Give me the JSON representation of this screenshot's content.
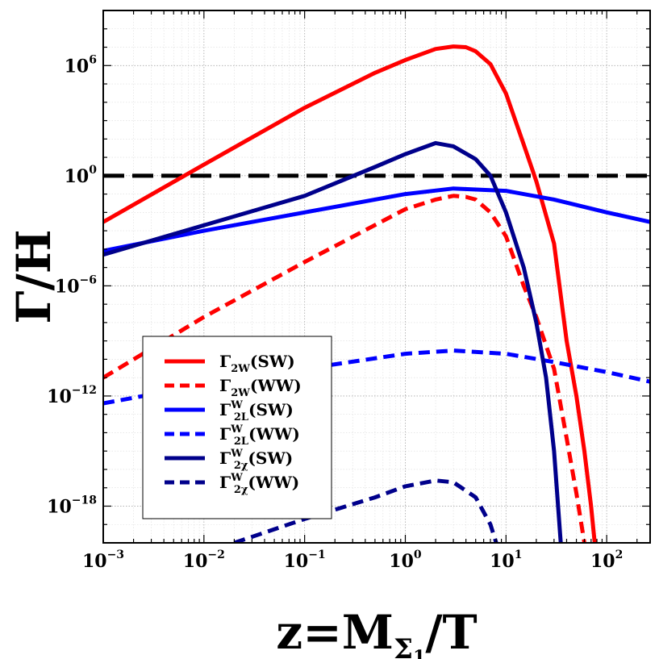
{
  "chart_data": {
    "type": "line",
    "xlabel": "z=M",
    "xlabel_sub": "Σ",
    "xlabel_subsub": "1",
    "xlabel_tail": "/T",
    "ylabel": "Γ/H",
    "x_scale": "log",
    "y_scale": "log",
    "xlim": [
      0.001,
      270
    ],
    "ylim": [
      1e-20,
      1000000000.0
    ],
    "grid": true,
    "legend_position": "lower-left",
    "x_ticks": [
      {
        "base": "10",
        "exp": "−3",
        "value": 0.001
      },
      {
        "base": "10",
        "exp": "−2",
        "value": 0.01
      },
      {
        "base": "10",
        "exp": "−1",
        "value": 0.1
      },
      {
        "base": "10",
        "exp": "0",
        "value": 1
      },
      {
        "base": "10",
        "exp": "1",
        "value": 10
      },
      {
        "base": "10",
        "exp": "2",
        "value": 100
      }
    ],
    "y_ticks": [
      {
        "base": "10",
        "exp": "−18",
        "value": 1e-18
      },
      {
        "base": "10",
        "exp": "−12",
        "value": 1e-12
      },
      {
        "base": "10",
        "exp": "−6",
        "value": 1e-06
      },
      {
        "base": "10",
        "exp": "0",
        "value": 1
      },
      {
        "base": "10",
        "exp": "6",
        "value": 1000000.0
      }
    ],
    "reference_line": {
      "y": 1,
      "color": "#000000",
      "style": "dashed"
    },
    "series": [
      {
        "name": "Γ2W(SW)",
        "label_main": "Γ",
        "label_sub": "2W",
        "label_sup": "",
        "label_tail": "(SW)",
        "color": "#ff0000",
        "dash": "solid",
        "points": [
          [
            0.001,
            0.003
          ],
          [
            0.01,
            4
          ],
          [
            0.1,
            5000
          ],
          [
            0.5,
            400000
          ],
          [
            1,
            2000000
          ],
          [
            2,
            8000000
          ],
          [
            3,
            11000000
          ],
          [
            4,
            10000000
          ],
          [
            5,
            6000000
          ],
          [
            7,
            1200000
          ],
          [
            10,
            30000
          ],
          [
            15,
            50
          ],
          [
            20,
            0.5
          ],
          [
            30,
            0.0002
          ],
          [
            40,
            1e-09
          ],
          [
            50,
            1e-12
          ],
          [
            60,
            1e-15
          ],
          [
            70,
            1e-18
          ],
          [
            76,
            1e-20
          ]
        ]
      },
      {
        "name": "Γ2W(WW)",
        "label_main": "Γ",
        "label_sub": "2W",
        "label_sup": "",
        "label_tail": "(WW)",
        "color": "#ff0000",
        "dash": "dashed",
        "points": [
          [
            0.001,
            1e-11
          ],
          [
            0.01,
            2e-08
          ],
          [
            0.1,
            2e-05
          ],
          [
            1,
            0.015
          ],
          [
            2,
            0.05
          ],
          [
            3,
            0.08
          ],
          [
            4,
            0.07
          ],
          [
            5,
            0.05
          ],
          [
            7,
            0.01
          ],
          [
            10,
            0.0005
          ],
          [
            15,
            1e-06
          ],
          [
            20,
            2e-08
          ],
          [
            30,
            3e-11
          ],
          [
            40,
            5e-15
          ],
          [
            50,
            5e-18
          ],
          [
            60,
            1e-20
          ]
        ]
      },
      {
        "name": "Γ2L^W(SW)",
        "label_main": "Γ",
        "label_sub": "2L",
        "label_sup": "W",
        "label_tail": "(SW)",
        "color": "#0000ff",
        "dash": "solid",
        "points": [
          [
            0.001,
            8e-05
          ],
          [
            0.01,
            0.001
          ],
          [
            0.1,
            0.01
          ],
          [
            1,
            0.1
          ],
          [
            3,
            0.2
          ],
          [
            10,
            0.15
          ],
          [
            30,
            0.05
          ],
          [
            100,
            0.01
          ],
          [
            270,
            0.003
          ]
        ]
      },
      {
        "name": "Γ2L^W(WW)",
        "label_main": "Γ",
        "label_sub": "2L",
        "label_sup": "W",
        "label_tail": "(WW)",
        "color": "#0000ff",
        "dash": "dashed",
        "points": [
          [
            0.001,
            4e-13
          ],
          [
            0.01,
            4e-12
          ],
          [
            0.1,
            3e-11
          ],
          [
            1,
            2e-10
          ],
          [
            3,
            3e-10
          ],
          [
            10,
            2e-10
          ],
          [
            30,
            7e-11
          ],
          [
            100,
            2e-11
          ],
          [
            270,
            6e-12
          ]
        ]
      },
      {
        "name": "Γ2χ^W(SW)",
        "label_main": "Γ",
        "label_sub": "2χ",
        "label_sup": "W",
        "label_tail": "(SW)",
        "color": "#00008b",
        "dash": "solid",
        "points": [
          [
            0.001,
            5e-05
          ],
          [
            0.01,
            0.002
          ],
          [
            0.1,
            0.08
          ],
          [
            0.5,
            3
          ],
          [
            1,
            15
          ],
          [
            2,
            60
          ],
          [
            3,
            40
          ],
          [
            5,
            8
          ],
          [
            7,
            1
          ],
          [
            10,
            0.01
          ],
          [
            15,
            1e-05
          ],
          [
            20,
            1e-08
          ],
          [
            25,
            1e-11
          ],
          [
            30,
            1e-15
          ],
          [
            35,
            1e-20
          ]
        ]
      },
      {
        "name": "Γ2χ^W(WW)",
        "label_main": "Γ",
        "label_sub": "2χ",
        "label_sup": "W",
        "label_tail": "(WW)",
        "color": "#00008b",
        "dash": "dashed",
        "points": [
          [
            0.02,
            1e-20
          ],
          [
            0.1,
            2e-19
          ],
          [
            0.5,
            3e-18
          ],
          [
            1,
            1.2e-17
          ],
          [
            2,
            2.5e-17
          ],
          [
            3,
            2e-17
          ],
          [
            5,
            3e-18
          ],
          [
            7,
            1e-19
          ],
          [
            8,
            1e-20
          ]
        ]
      }
    ]
  }
}
